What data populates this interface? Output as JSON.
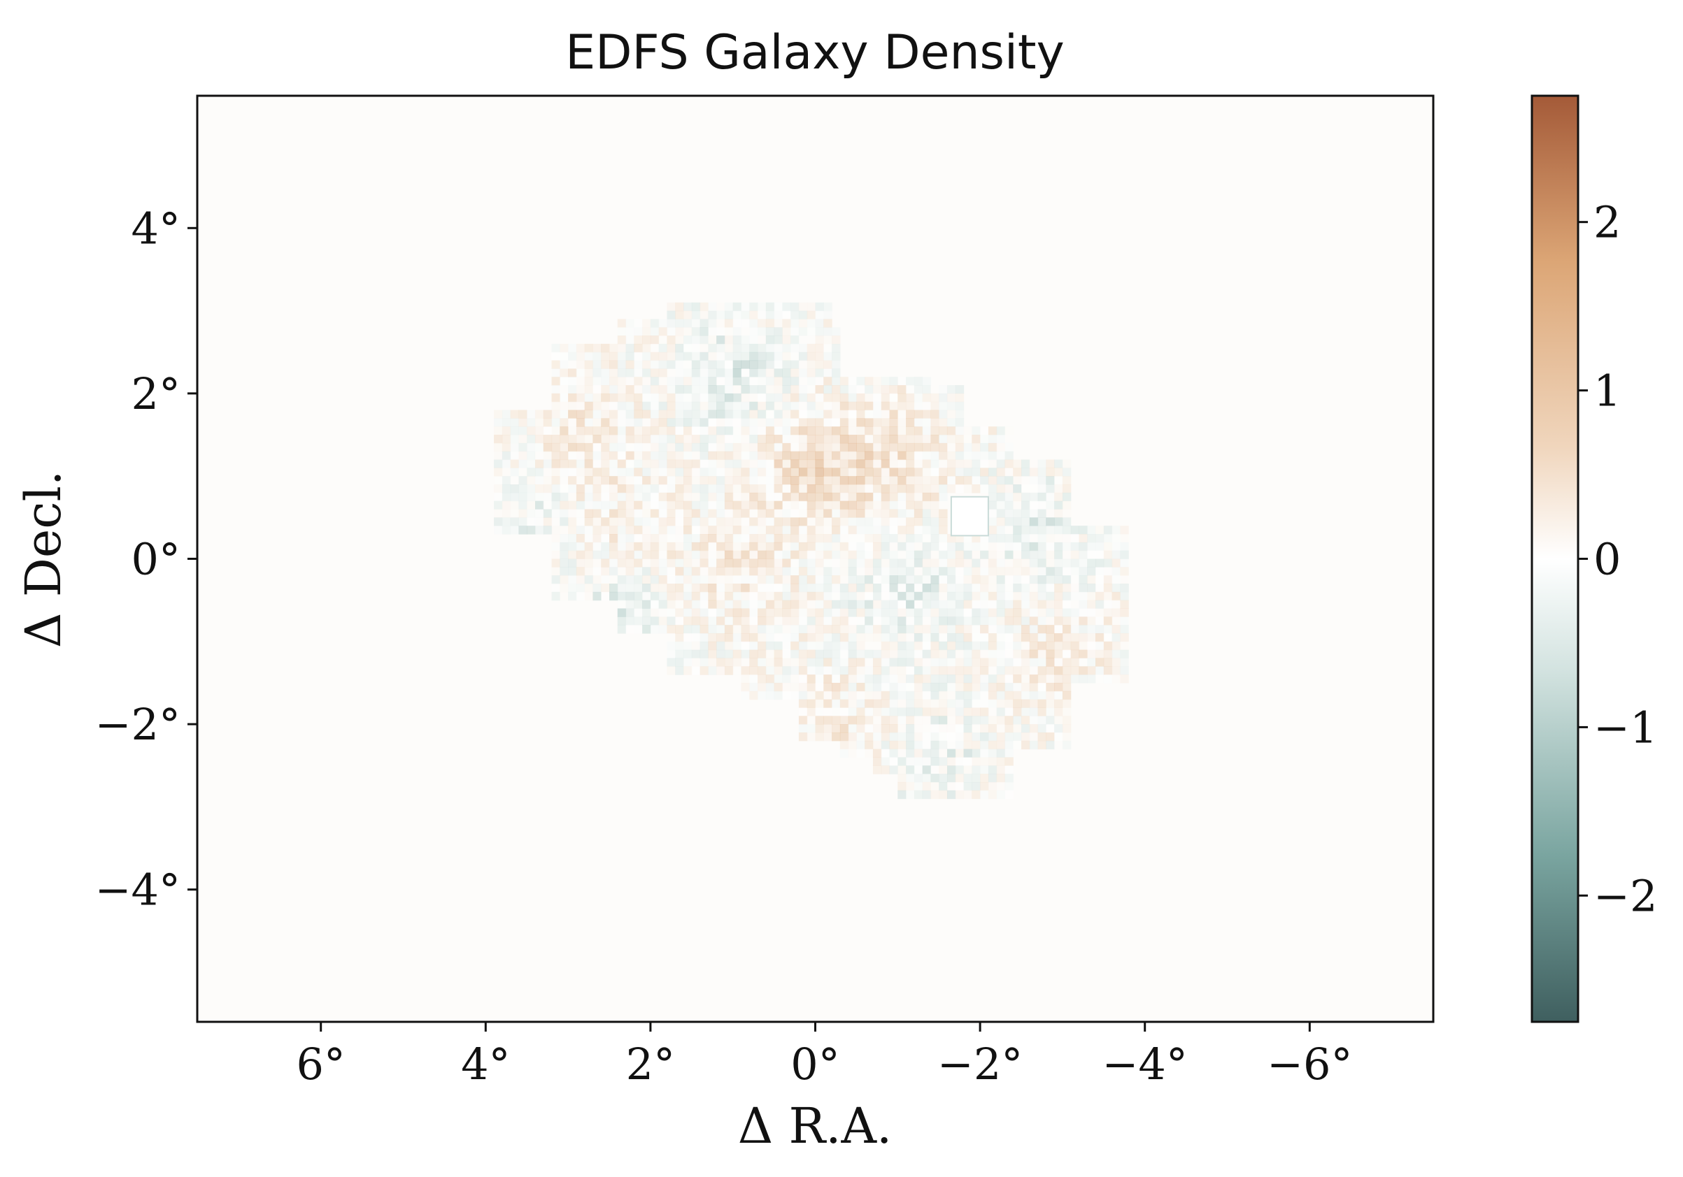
{
  "chart_data": {
    "type": "heatmap",
    "title": "EDFS Galaxy Density",
    "xlabel": "Δ R.A.",
    "ylabel": "Δ Decl.",
    "xlim": [
      7.5,
      -7.5
    ],
    "ylim": [
      -5.6,
      5.6
    ],
    "x_ticks": [
      6,
      4,
      2,
      0,
      -2,
      -4,
      -6
    ],
    "x_tick_labels": [
      "6°",
      "4°",
      "2°",
      "0°",
      "−2°",
      "−4°",
      "−6°"
    ],
    "y_ticks": [
      4,
      2,
      0,
      -2,
      -4
    ],
    "y_tick_labels": [
      "4°",
      "2°",
      "0°",
      "−2°",
      "−4°"
    ],
    "colorbar": {
      "range": [
        -2.75,
        2.75
      ],
      "ticks": [
        2,
        1,
        0,
        -1,
        -2
      ],
      "tick_labels": [
        "2",
        "1",
        "0",
        "−1",
        "−2"
      ],
      "colormap": [
        "#3f5f5f",
        "#7aa5a0",
        "#d3e3e0",
        "#ffffff",
        "#f0d6bd",
        "#dca676",
        "#a45a38"
      ]
    },
    "background_color": "#fdfcfa",
    "footprint_tiles_deg": [
      {
        "ra": [
          3.2,
          2.1
        ],
        "dec": [
          1.7,
          0.3
        ]
      },
      {
        "ra": [
          3.85,
          3.2
        ],
        "dec": [
          1.8,
          0.3
        ]
      },
      {
        "ra": [
          3.2,
          1.75
        ],
        "dec": [
          2.55,
          -0.5
        ]
      },
      {
        "ra": [
          2.35,
          0.9
        ],
        "dec": [
          2.9,
          -0.9
        ]
      },
      {
        "ra": [
          1.75,
          -0.2
        ],
        "dec": [
          3.1,
          -1.4
        ]
      },
      {
        "ra": [
          0.9,
          -0.3
        ],
        "dec": [
          2.8,
          -1.7
        ]
      },
      {
        "ra": [
          0.2,
          -1.4
        ],
        "dec": [
          2.2,
          -2.2
        ]
      },
      {
        "ra": [
          -0.3,
          -1.85
        ],
        "dec": [
          2.05,
          -2.4
        ]
      },
      {
        "ra": [
          -0.7,
          -2.4
        ],
        "dec": [
          1.6,
          -2.6
        ]
      },
      {
        "ra": [
          -1.0,
          -2.4
        ],
        "dec": [
          1.2,
          -2.9
        ]
      },
      {
        "ra": [
          -1.6,
          -3.1
        ],
        "dec": [
          1.15,
          -2.35
        ]
      },
      {
        "ra": [
          -2.2,
          -3.1
        ],
        "dec": [
          0.7,
          -2.1
        ]
      },
      {
        "ra": [
          -2.6,
          -3.85
        ],
        "dec": [
          -0.05,
          -1.5
        ]
      },
      {
        "ra": [
          -2.9,
          -3.85
        ],
        "dec": [
          0.4,
          -0.05
        ]
      }
    ],
    "masked_region_deg": {
      "ra": [
        -1.65,
        -2.1
      ],
      "dec": [
        0.75,
        0.28
      ]
    },
    "overdense_regions_deg": [
      {
        "ra": 0.1,
        "dec": 1.1,
        "amplitude": 1.0
      },
      {
        "ra": -0.9,
        "dec": 1.2,
        "amplitude": 0.9
      },
      {
        "ra": 1.0,
        "dec": -0.1,
        "amplitude": 0.7
      },
      {
        "ra": 2.9,
        "dec": 1.5,
        "amplitude": 0.6
      },
      {
        "ra": -2.9,
        "dec": -1.2,
        "amplitude": 0.5
      },
      {
        "ra": -0.2,
        "dec": -2.0,
        "amplitude": 0.6
      },
      {
        "ra": 2.4,
        "dec": 0.4,
        "amplitude": 0.5
      }
    ],
    "underdense_regions_deg": [
      {
        "ra": 1.0,
        "dec": 2.2,
        "amplitude": -0.7
      },
      {
        "ra": 2.4,
        "dec": -0.6,
        "amplitude": -0.6
      },
      {
        "ra": -1.1,
        "dec": -0.4,
        "amplitude": -0.6
      },
      {
        "ra": -1.5,
        "dec": -2.4,
        "amplitude": -0.5
      },
      {
        "ra": 3.5,
        "dec": 0.7,
        "amplitude": -0.5
      },
      {
        "ra": -2.7,
        "dec": 0.3,
        "amplitude": -0.6
      }
    ]
  }
}
